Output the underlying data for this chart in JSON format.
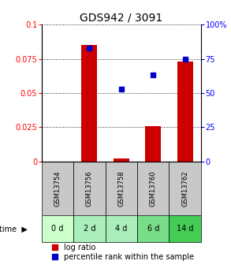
{
  "title": "GDS942 / 3091",
  "samples": [
    "GSM13754",
    "GSM13756",
    "GSM13758",
    "GSM13760",
    "GSM13762"
  ],
  "time_labels": [
    "0 d",
    "2 d",
    "4 d",
    "6 d",
    "14 d"
  ],
  "log_ratio": [
    0.0,
    0.085,
    0.002,
    0.026,
    0.073
  ],
  "percentile_rank": [
    null,
    0.083,
    0.053,
    0.063,
    0.075
  ],
  "ylim_left": [
    0,
    0.1
  ],
  "ylim_right": [
    0,
    100
  ],
  "yticks_left": [
    0,
    0.025,
    0.05,
    0.075,
    0.1
  ],
  "yticks_right": [
    0,
    25,
    50,
    75,
    100
  ],
  "ytick_labels_left": [
    "0",
    "0.025",
    "0.05",
    "0.075",
    "0.1"
  ],
  "ytick_labels_right": [
    "0",
    "25",
    "50",
    "75",
    "100%"
  ],
  "bar_color": "#cc0000",
  "dot_color": "#0000cc",
  "sample_box_color": "#c8c8c8",
  "time_box_colors": [
    "#ccffcc",
    "#aaeebb",
    "#aaeebb",
    "#77dd88",
    "#44cc55"
  ],
  "bar_width": 0.5,
  "title_fontsize": 10,
  "tick_fontsize": 7,
  "legend_fontsize": 7
}
